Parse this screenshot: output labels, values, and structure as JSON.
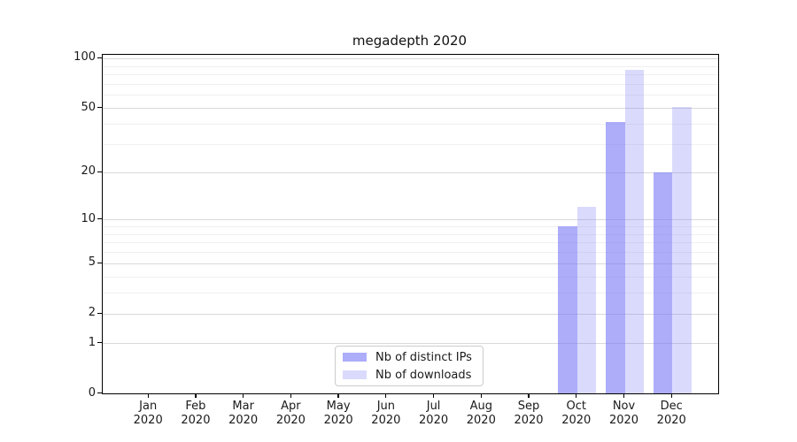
{
  "figure": {
    "title": "megadepth 2020"
  },
  "chart_data": {
    "type": "bar",
    "title": "megadepth 2020",
    "categories": [
      "Jan 2020",
      "Feb 2020",
      "Mar 2020",
      "Apr 2020",
      "May 2020",
      "Jun 2020",
      "Jul 2020",
      "Aug 2020",
      "Sep 2020",
      "Oct 2020",
      "Nov 2020",
      "Dec 2020"
    ],
    "x_tick_months": [
      "Jan",
      "Feb",
      "Mar",
      "Apr",
      "May",
      "Jun",
      "Jul",
      "Aug",
      "Sep",
      "Oct",
      "Nov",
      "Dec"
    ],
    "x_tick_year": "2020",
    "series": [
      {
        "name": "Nb of distinct IPs",
        "color": "rgba(118,118,247,0.60)",
        "values": [
          0,
          0,
          0,
          0,
          0,
          0,
          0,
          0,
          0,
          9,
          41,
          20
        ]
      },
      {
        "name": "Nb of downloads",
        "color": "rgba(118,118,247,0.27)",
        "values": [
          0,
          0,
          0,
          0,
          0,
          0,
          0,
          0,
          0,
          12,
          85,
          51
        ]
      }
    ],
    "yscale": "log1p",
    "ylim": [
      0,
      105
    ],
    "yticks_major": [
      0,
      1,
      2,
      5,
      10,
      20,
      50,
      100
    ],
    "yticks_minor": [
      3,
      4,
      6,
      7,
      8,
      9,
      30,
      40,
      60,
      70,
      80,
      90
    ],
    "grid": true,
    "legend_position": "lower center"
  },
  "colors": {
    "grid_major": "#d9d9d9",
    "grid_minor": "#f0f0f0",
    "spine": "#000000",
    "tick_label": "#1a1a1a"
  }
}
